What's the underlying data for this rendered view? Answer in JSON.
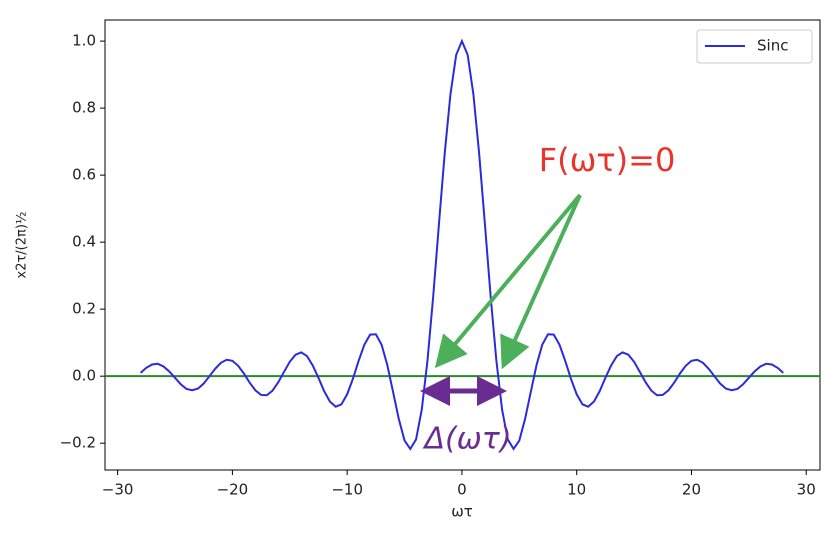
{
  "chart_data": {
    "type": "line",
    "xlabel": "ωτ",
    "ylabel": "x2τ/(2π)½",
    "x": [
      -28,
      -27.5,
      -27,
      -26.5,
      -26,
      -25.5,
      -25,
      -24.5,
      -24,
      -23.5,
      -23,
      -22.5,
      -22,
      -21.5,
      -21,
      -20.5,
      -20,
      -19.5,
      -19,
      -18.5,
      -18,
      -17.5,
      -17,
      -16.5,
      -16,
      -15.5,
      -15,
      -14.5,
      -14,
      -13.5,
      -13,
      -12.5,
      -12,
      -11.5,
      -11,
      -10.5,
      -10,
      -9.5,
      -9,
      -8.5,
      -8,
      -7.5,
      -7,
      -6.5,
      -6,
      -5.5,
      -5,
      -4.5,
      -4,
      -3.5,
      -3,
      -2.5,
      -2,
      -1.5,
      -1,
      -0.5,
      0,
      0.5,
      1,
      1.5,
      2,
      2.5,
      3,
      3.5,
      4,
      4.5,
      5,
      5.5,
      6,
      6.5,
      7,
      7.5,
      8,
      8.5,
      9,
      9.5,
      10,
      10.5,
      11,
      11.5,
      12,
      12.5,
      13,
      13.5,
      14,
      14.5,
      15,
      15.5,
      16,
      16.5,
      17,
      17.5,
      18,
      18.5,
      19,
      19.5,
      20,
      20.5,
      21,
      21.5,
      22,
      22.5,
      23,
      23.5,
      24,
      24.5,
      25,
      25.5,
      26,
      26.5,
      27,
      27.5,
      28
    ],
    "series": [
      {
        "name": "Sinc",
        "color": "#2b2bdc",
        "values": [
          0.01,
          0.025,
          0.035,
          0.037,
          0.029,
          0.014,
          -0.005,
          -0.024,
          -0.038,
          -0.042,
          -0.037,
          -0.022,
          0,
          0.022,
          0.04,
          0.049,
          0.046,
          0.031,
          0.008,
          -0.019,
          -0.042,
          -0.056,
          -0.057,
          -0.043,
          -0.018,
          0.013,
          0.043,
          0.064,
          0.071,
          0.06,
          0.032,
          -0.005,
          -0.045,
          -0.076,
          -0.091,
          -0.084,
          -0.054,
          -0.008,
          0.046,
          0.094,
          0.124,
          0.125,
          0.094,
          0.033,
          -0.047,
          -0.128,
          -0.192,
          -0.217,
          -0.189,
          -0.1,
          0.047,
          0.239,
          0.455,
          0.665,
          0.841,
          0.959,
          1,
          0.959,
          0.841,
          0.665,
          0.455,
          0.239,
          0.047,
          -0.1,
          -0.189,
          -0.217,
          -0.192,
          -0.128,
          -0.047,
          0.033,
          0.094,
          0.125,
          0.124,
          0.094,
          0.046,
          -0.008,
          -0.054,
          -0.084,
          -0.091,
          -0.076,
          -0.045,
          -0.005,
          0.032,
          0.06,
          0.071,
          0.064,
          0.043,
          0.013,
          -0.018,
          -0.043,
          -0.057,
          -0.056,
          -0.042,
          -0.019,
          0.008,
          0.031,
          0.046,
          0.049,
          0.04,
          0.022,
          0,
          -0.022,
          -0.037,
          -0.042,
          -0.038,
          -0.024,
          -0.005,
          0.014,
          0.029,
          0.037,
          0.035,
          0.025,
          0.01
        ]
      }
    ],
    "hlines": [
      {
        "y": 0,
        "color": "#2a8a2a"
      }
    ],
    "xlim": [
      -31.1,
      31.2
    ],
    "ylim": [
      -0.28,
      1.063
    ],
    "xticks": [
      {
        "value": -30,
        "label": "−30"
      },
      {
        "value": -20,
        "label": "−20"
      },
      {
        "value": -10,
        "label": "−10"
      },
      0,
      10,
      20,
      30
    ],
    "yticks": [
      {
        "value": -0.2,
        "label": "−0.2"
      },
      {
        "value": 0,
        "label": "0.0"
      },
      0.2,
      0.4,
      0.6,
      0.8,
      {
        "value": 1,
        "label": "1.0"
      }
    ],
    "legend": "upper right",
    "annotations": [
      {
        "text": "F(ωτ)=0",
        "color": "#e8352b"
      },
      {
        "text": "Δ(ωτ)",
        "color": "#6a2c91"
      }
    ]
  }
}
